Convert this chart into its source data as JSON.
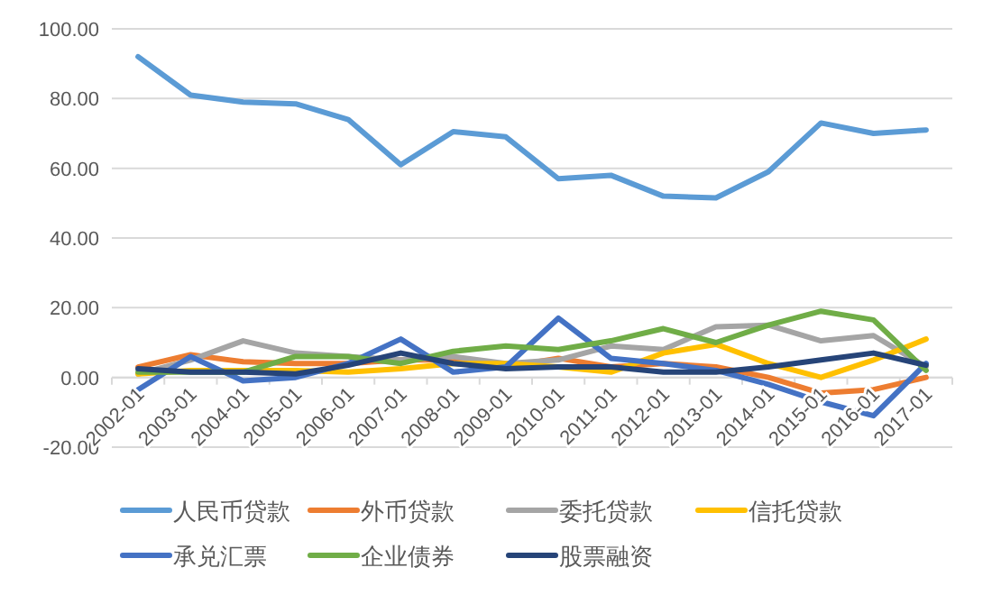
{
  "chart_data": {
    "type": "line",
    "categories": [
      "2002-01",
      "2003-01",
      "2004-01",
      "2005-01",
      "2006-01",
      "2007-01",
      "2008-01",
      "2009-01",
      "2010-01",
      "2011-01",
      "2012-01",
      "2013-01",
      "2014-01",
      "2015-01",
      "2016-01",
      "2017-01"
    ],
    "ylim": [
      -20,
      100
    ],
    "yticks": [
      {
        "value": -20,
        "label": "-20.00"
      },
      {
        "value": 0,
        "label": "0.00"
      },
      {
        "value": 20,
        "label": "20.00"
      },
      {
        "value": 40,
        "label": "40.00"
      },
      {
        "value": 60,
        "label": "60.00"
      },
      {
        "value": 80,
        "label": "80.00"
      },
      {
        "value": 100,
        "label": "100.00"
      }
    ],
    "grid": "y",
    "legend": "bottom",
    "marker": "none",
    "line_style": "solid",
    "series": [
      {
        "name": "人民币贷款",
        "color": "#5b9bd5",
        "values": [
          92,
          81,
          79,
          78.5,
          74,
          61,
          70.5,
          69,
          57,
          58,
          52,
          51.5,
          59,
          73,
          70,
          71
        ]
      },
      {
        "name": "外币贷款",
        "color": "#ed7d31",
        "values": [
          3,
          6.5,
          4.5,
          4,
          4,
          5,
          5,
          3,
          5.5,
          3,
          4,
          3,
          0,
          -4.5,
          -3.5,
          0
        ]
      },
      {
        "name": "委托贷款",
        "color": "#a5a5a5",
        "values": [
          1,
          5,
          10.5,
          7,
          6,
          5,
          6,
          4,
          5,
          9,
          8,
          14.5,
          15,
          10.5,
          12,
          3
        ]
      },
      {
        "name": "信托贷款",
        "color": "#ffc000",
        "values": [
          1,
          2,
          2,
          2,
          1.5,
          2.5,
          4,
          4,
          3,
          1.5,
          7,
          9.5,
          4,
          0,
          5,
          11
        ]
      },
      {
        "name": "承兑汇票",
        "color": "#4472c4",
        "values": [
          -3.5,
          6,
          -1,
          0,
          4,
          11,
          1.5,
          3,
          17,
          5.5,
          4,
          2,
          -2,
          -7,
          -11,
          4
        ]
      },
      {
        "name": "企业债券",
        "color": "#70ad47",
        "values": [
          1.5,
          1.5,
          1.5,
          6,
          6,
          4,
          7.5,
          9,
          8,
          10.5,
          14,
          10,
          15,
          19,
          16.5,
          2
        ]
      },
      {
        "name": "股票融资",
        "color": "#264478",
        "values": [
          2.5,
          1.5,
          1.5,
          1,
          3.5,
          7,
          4,
          2.5,
          3,
          3,
          1.5,
          1.5,
          3,
          5,
          7,
          3.5
        ]
      }
    ]
  }
}
